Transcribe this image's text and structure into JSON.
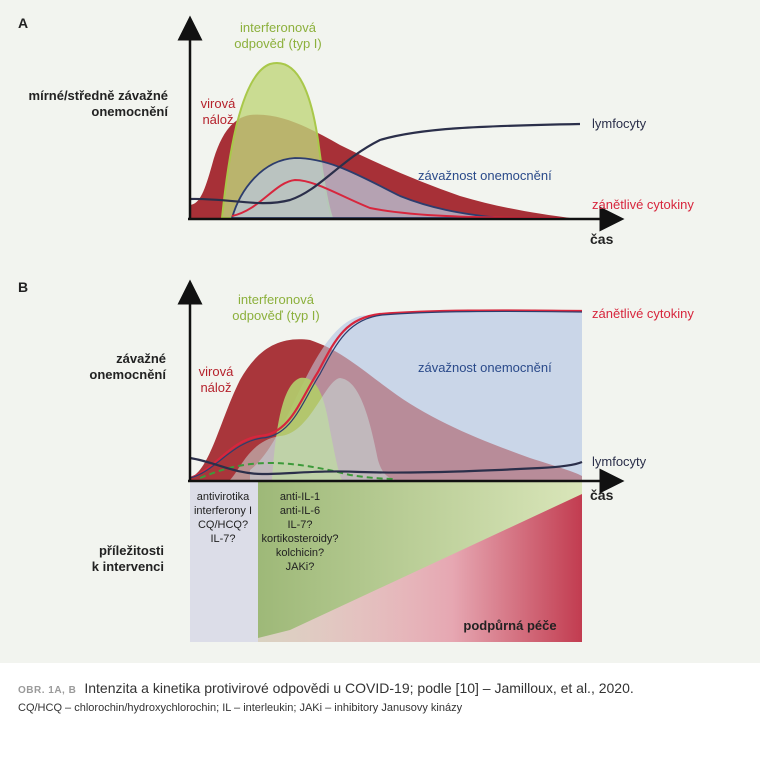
{
  "colors": {
    "background": "#f2f4ef",
    "viral": "#9e1b22",
    "interferon": "#a9c84a",
    "severity": "#2d3d6e",
    "cytokine": "#d7263d",
    "lymph": "#2b2f4a",
    "green_text": "#8cb03c",
    "blue_text": "#2a4a8a"
  },
  "panel_a": {
    "letter": "A",
    "ylabel_lines": [
      "mírné/středně závažné",
      "onemocnění"
    ],
    "xlabel": "čas",
    "labels": {
      "interferon_lines": [
        "interferonová",
        "odpověď (typ I)"
      ],
      "viral_lines": [
        "virová",
        "nálož"
      ],
      "lymph": "lymfocyty",
      "severity": "závažnost onemocnění",
      "cytokines": "zánětlivé cytokiny"
    }
  },
  "panel_b": {
    "letter": "B",
    "ylabel_lines": [
      "závažné",
      "onemocnění"
    ],
    "xlabel": "čas",
    "labels": {
      "interferon_lines": [
        "interferonová",
        "odpověď (typ I)"
      ],
      "viral_lines": [
        "virová",
        "nálož"
      ],
      "cytokines": "zánětlivé cytokiny",
      "severity": "závažnost onemocnění",
      "lymph": "lymfocyty"
    },
    "intervention_label_lines": [
      "příležitosti",
      "k intervenci"
    ],
    "early_treatments": [
      "antivirotika",
      "interferony I",
      "CQ/HCQ?",
      "IL-7?"
    ],
    "late_treatments": [
      "anti-IL-1",
      "anti-IL-6",
      "IL-7?",
      "kortikosteroidy?",
      "kolchicin?",
      "JAKi?"
    ],
    "supportive_care": "podpůrná péče"
  },
  "caption": {
    "tag": "OBR. 1A, B",
    "title": "Intenzita a kinetika protivirové odpovědi u COVID-19; podle [10] – Jamilloux, et al., 2020.",
    "abbreviations": "CQ/HCQ – chlorochin/hydroxychlorochin; IL – interleukin; JAKi – inhibitory Janusovy kinázy"
  }
}
